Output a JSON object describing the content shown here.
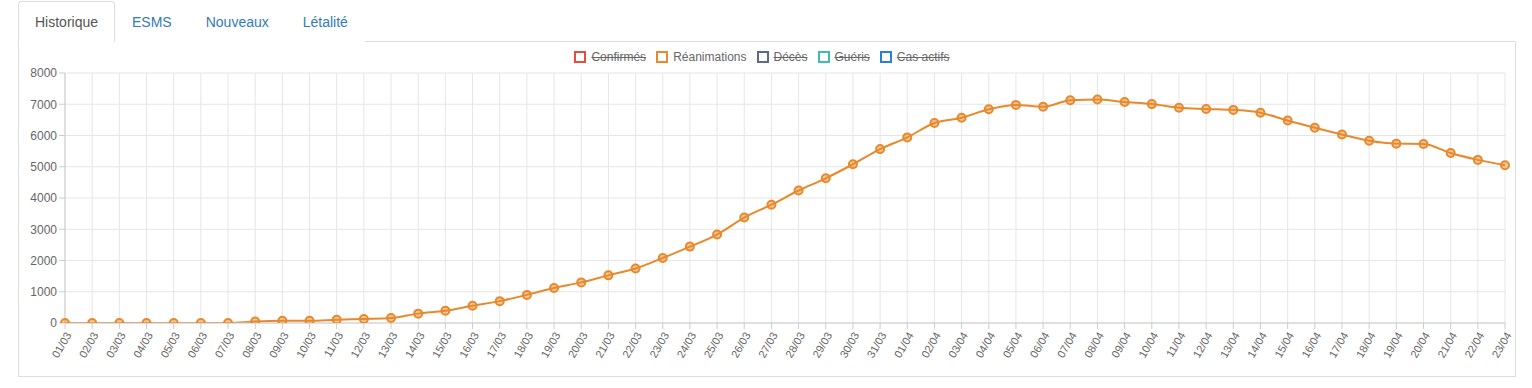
{
  "tabs": {
    "items": [
      "Historique",
      "ESMS",
      "Nouveaux",
      "Létalité"
    ],
    "active": "Historique"
  },
  "legend_items": [
    {
      "name": "Confirmés",
      "color": "#e74c3c",
      "hidden": true
    },
    {
      "name": "Réanimations",
      "color": "#e8892b",
      "hidden": false
    },
    {
      "name": "Décès",
      "color": "#5a6a8a",
      "hidden": true
    },
    {
      "name": "Guéris",
      "color": "#3dbdb0",
      "hidden": true
    },
    {
      "name": "Cas actifs",
      "color": "#2b7de0",
      "hidden": true
    }
  ],
  "chart_data": {
    "type": "line",
    "categories": [
      "01/03",
      "02/03",
      "03/03",
      "04/03",
      "05/03",
      "06/03",
      "07/03",
      "08/03",
      "09/03",
      "10/03",
      "11/03",
      "12/03",
      "13/03",
      "14/03",
      "15/03",
      "16/03",
      "17/03",
      "18/03",
      "19/03",
      "20/03",
      "21/03",
      "22/03",
      "23/03",
      "24/03",
      "25/03",
      "26/03",
      "27/03",
      "28/03",
      "29/03",
      "30/03",
      "31/03",
      "01/04",
      "02/04",
      "03/04",
      "04/04",
      "05/04",
      "06/04",
      "07/04",
      "08/04",
      "09/04",
      "10/04",
      "11/04",
      "12/04",
      "13/04",
      "14/04",
      "15/04",
      "16/04",
      "17/04",
      "18/04",
      "19/04",
      "20/04",
      "21/04",
      "22/04",
      "23/04"
    ],
    "series": [
      {
        "name": "Réanimations",
        "color": "#e8892b",
        "marker": "circle",
        "values": [
          0,
          0,
          0,
          0,
          0,
          0,
          0,
          50,
          70,
          70,
          105,
          130,
          160,
          300,
          390,
          550,
          700,
          900,
          1120,
          1300,
          1525,
          1745,
          2080,
          2445,
          2830,
          3375,
          3785,
          4240,
          4630,
          5080,
          5565,
          5940,
          6400,
          6570,
          6840,
          6980,
          6920,
          7130,
          7150,
          7070,
          7005,
          6890,
          6850,
          6820,
          6730,
          6480,
          6250,
          6030,
          5830,
          5740,
          5730,
          5440,
          5220,
          5050
        ]
      }
    ],
    "ylim": [
      0,
      8000
    ],
    "yticks": [
      0,
      1000,
      2000,
      3000,
      4000,
      5000,
      6000,
      7000,
      8000
    ],
    "grid": true
  }
}
